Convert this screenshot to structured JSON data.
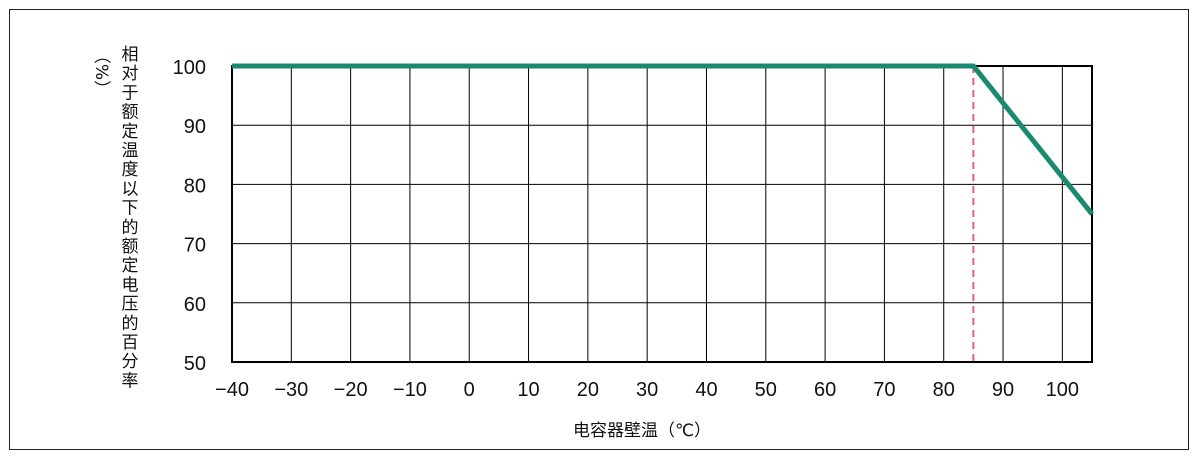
{
  "chart_data": {
    "type": "line",
    "title": "",
    "xlabel": "电容器壁温（℃）",
    "ylabel": "相对于额定温度以下的额定电压的百分率（%）",
    "ylabel_main": "相对于额定温度以下的额定电压的百分率",
    "ylabel_unit": "（%）",
    "x_ticks": [
      -40,
      -30,
      -20,
      -10,
      0,
      10,
      20,
      30,
      40,
      50,
      60,
      70,
      80,
      90,
      100
    ],
    "x_tick_labels": [
      "−40",
      "−30",
      "−20",
      "−10",
      "0",
      "10",
      "20",
      "30",
      "40",
      "50",
      "60",
      "70",
      "80",
      "90",
      "100"
    ],
    "y_ticks": [
      50,
      60,
      70,
      80,
      90,
      100
    ],
    "y_tick_labels": [
      "50",
      "60",
      "70",
      "80",
      "90",
      "100"
    ],
    "xlim": [
      -40,
      105
    ],
    "ylim": [
      50,
      100
    ],
    "grid": true,
    "series": [
      {
        "x": [
          -40,
          85,
          105
        ],
        "y": [
          100,
          100,
          75
        ],
        "color": "#1a8a6e"
      }
    ],
    "reference_line": {
      "x": 85,
      "color": "#e0607a",
      "style": "dashed"
    }
  }
}
